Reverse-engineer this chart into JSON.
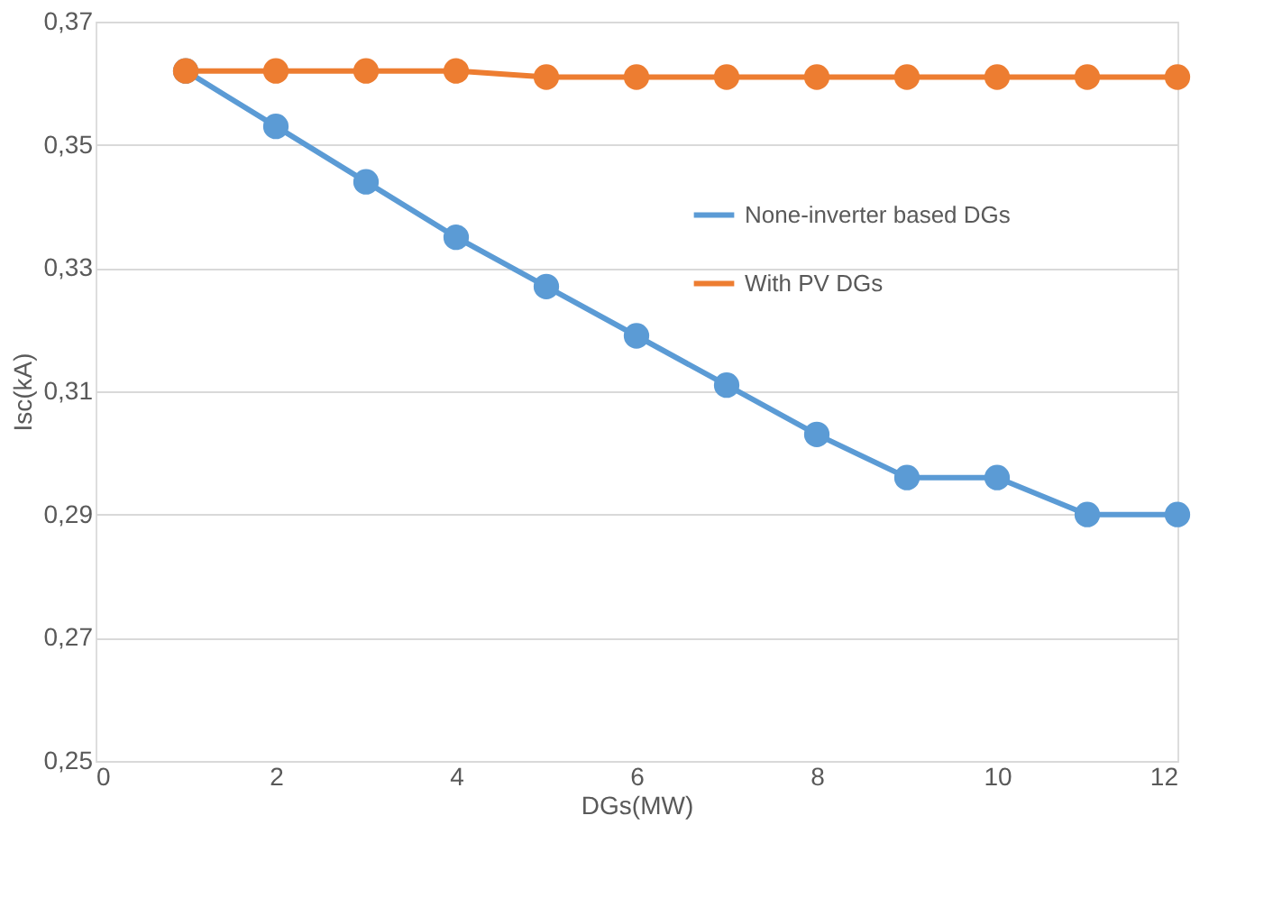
{
  "chart_data": {
    "type": "line",
    "xlabel": "DGs(MW)",
    "ylabel": "Isc(kA)",
    "x": [
      1,
      2,
      3,
      4,
      5,
      6,
      7,
      8,
      9,
      10,
      11,
      12
    ],
    "series": [
      {
        "name": "None-inverter based DGs",
        "color": "#5b9bd5",
        "values": [
          0.362,
          0.353,
          0.344,
          0.335,
          0.327,
          0.319,
          0.311,
          0.303,
          0.296,
          0.296,
          0.29,
          0.29
        ]
      },
      {
        "name": "With PV DGs",
        "color": "#ed7d31",
        "values": [
          0.362,
          0.362,
          0.362,
          0.362,
          0.361,
          0.361,
          0.361,
          0.361,
          0.361,
          0.361,
          0.361,
          0.361
        ]
      }
    ],
    "xlim": [
      0,
      12
    ],
    "xticks": [
      0,
      2,
      4,
      6,
      8,
      10,
      12
    ],
    "ylim": [
      0.25,
      0.37
    ],
    "yticks": [
      {
        "value": 0.25,
        "label": "0,25"
      },
      {
        "value": 0.27,
        "label": "0,27"
      },
      {
        "value": 0.29,
        "label": "0,29"
      },
      {
        "value": 0.31,
        "label": "0,31"
      },
      {
        "value": 0.33,
        "label": "0,33"
      },
      {
        "value": 0.35,
        "label": "0,35"
      },
      {
        "value": 0.37,
        "label": "0,37"
      }
    ],
    "grid": "y",
    "legend": "right",
    "marker": "circle",
    "line_style": "solid"
  }
}
